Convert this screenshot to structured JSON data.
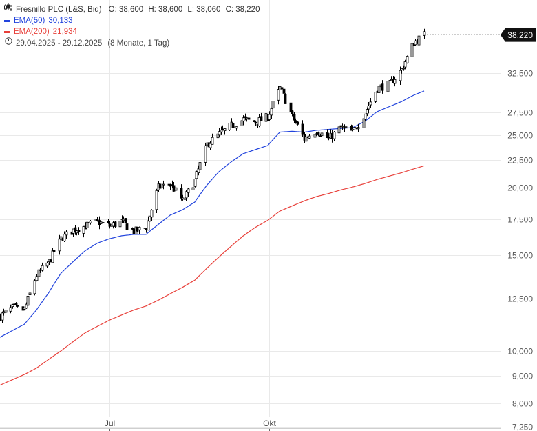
{
  "legend": {
    "title": "Fresnillo PLC (L&S, Bid)",
    "open": "O: 38,600",
    "high": "H: 38,600",
    "low": "L: 38,060",
    "close": "C: 38,220",
    "ema50_label": "EMA(50)",
    "ema50_value": "30,133",
    "ema200_label": "EMA(200)",
    "ema200_value": "21,934",
    "range": "29.04.2025 - 29.12.2025",
    "range_note": "(8 Monate, 1 Tag)"
  },
  "colors": {
    "candle": "#000000",
    "ema50": "#2244dd",
    "ema200": "#e8403a",
    "grid": "#e9e9e9",
    "price_tag_bg": "#111111"
  },
  "icons": {
    "chart_type": "candlestick-icon",
    "range": "clock-icon"
  },
  "chart_data": {
    "type": "candlestick",
    "title": "Fresnillo PLC (L&S, Bid)",
    "y_scale": "log",
    "ylim": [
      7.25,
      40.5
    ],
    "y_ticks": [
      {
        "value": 32.5,
        "label": "32,500"
      },
      {
        "value": 27.5,
        "label": "27,500"
      },
      {
        "value": 25.0,
        "label": "25,000"
      },
      {
        "value": 22.5,
        "label": "22,500"
      },
      {
        "value": 20.0,
        "label": "20,000"
      },
      {
        "value": 17.5,
        "label": "17,500"
      },
      {
        "value": 15.0,
        "label": "15,000"
      },
      {
        "value": 12.5,
        "label": "12,500"
      },
      {
        "value": 10.0,
        "label": "10,000"
      },
      {
        "value": 9.0,
        "label": "9,000"
      },
      {
        "value": 8.0,
        "label": "8,000"
      },
      {
        "value": 7.25,
        "label": "7,250"
      }
    ],
    "x_ticks": [
      {
        "value": "2025-07-01",
        "label": "Jul"
      },
      {
        "value": "2025-10-01",
        "label": "Okt"
      }
    ],
    "x_range": [
      "2025-04-29",
      "2025-12-29"
    ],
    "last_price": {
      "value": 38.22,
      "label": "38,220"
    },
    "close_series": {
      "dates": [
        "2025-04-29",
        "2025-05-06",
        "2025-05-13",
        "2025-05-20",
        "2025-05-27",
        "2025-06-03",
        "2025-06-10",
        "2025-06-17",
        "2025-06-24",
        "2025-07-01",
        "2025-07-08",
        "2025-07-15",
        "2025-07-22",
        "2025-07-29",
        "2025-08-05",
        "2025-08-12",
        "2025-08-19",
        "2025-08-26",
        "2025-09-02",
        "2025-09-09",
        "2025-09-16",
        "2025-09-23",
        "2025-09-30",
        "2025-10-07",
        "2025-10-14",
        "2025-10-21",
        "2025-10-28",
        "2025-11-04",
        "2025-11-11",
        "2025-11-18",
        "2025-11-25",
        "2025-12-02",
        "2025-12-09",
        "2025-12-16",
        "2025-12-23",
        "2025-12-29"
      ],
      "values": [
        11.6,
        12.0,
        11.9,
        13.8,
        14.6,
        16.1,
        16.7,
        17.0,
        17.3,
        17.0,
        17.3,
        16.6,
        16.9,
        20.0,
        20.3,
        18.9,
        20.6,
        24.0,
        25.1,
        26.0,
        26.7,
        26.4,
        27.0,
        30.5,
        27.0,
        24.6,
        25.5,
        24.6,
        25.8,
        25.3,
        27.5,
        30.5,
        31.0,
        33.0,
        37.0,
        38.22
      ]
    },
    "series": [
      {
        "name": "EMA(50)",
        "color": "#2244dd",
        "values": [
          10.6,
          10.9,
          11.2,
          11.9,
          12.8,
          13.9,
          14.6,
          15.3,
          15.8,
          16.1,
          16.3,
          16.4,
          16.4,
          17.1,
          17.8,
          18.2,
          18.8,
          20.2,
          21.4,
          22.3,
          23.1,
          23.5,
          23.9,
          25.3,
          25.4,
          25.3,
          25.5,
          25.6,
          25.7,
          25.8,
          26.5,
          27.6,
          28.2,
          28.8,
          29.6,
          30.133
        ]
      },
      {
        "name": "EMA(200)",
        "color": "#e8403a",
        "values": [
          8.65,
          8.85,
          9.05,
          9.3,
          9.65,
          10.0,
          10.4,
          10.8,
          11.1,
          11.4,
          11.65,
          11.9,
          12.1,
          12.4,
          12.75,
          13.1,
          13.5,
          14.2,
          14.9,
          15.6,
          16.3,
          16.9,
          17.4,
          18.1,
          18.5,
          18.9,
          19.25,
          19.5,
          19.8,
          20.05,
          20.35,
          20.7,
          21.0,
          21.3,
          21.65,
          21.934
        ]
      }
    ]
  }
}
